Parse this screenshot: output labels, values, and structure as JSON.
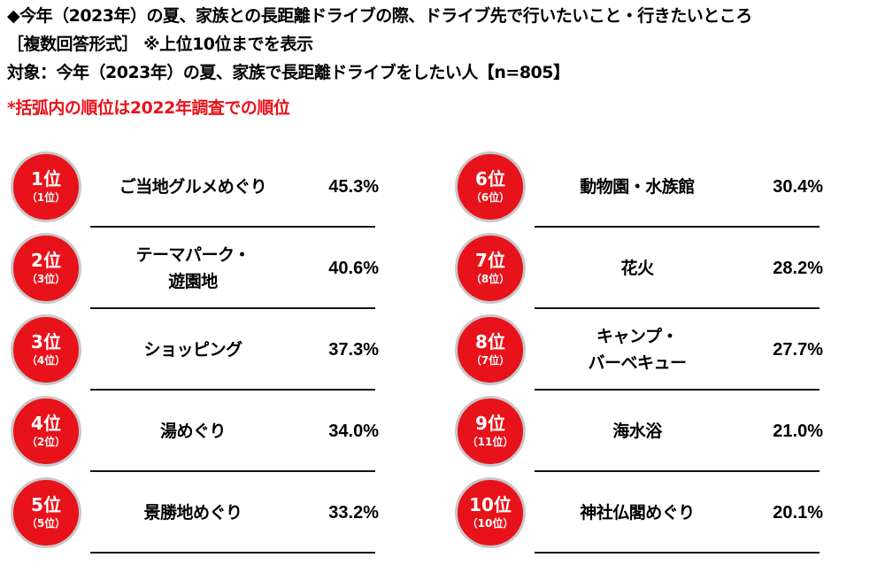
{
  "header": {
    "title": "◆今年（2023年）の夏、家族との長距離ドライブの際、ドライブ先で行いたいこと・行きたいところ",
    "format": "［複数回答形式］ ※上位10位までを表示",
    "target": "対象：今年（2023年）の夏、家族で長距離ドライブをしたい人【n=805】",
    "note": "*括弧内の順位は2022年調査での順位"
  },
  "colors": {
    "badge": "#e8121a",
    "badge_border": "#c8c8c8",
    "note": "#e8121a",
    "rule": "#111111"
  },
  "chart_data": {
    "type": "table",
    "title": "今年（2023年）の夏、家族との長距離ドライブの際、ドライブ先で行いたいこと・行きたいところ",
    "subtitle": "複数回答形式 / 上位10位 / n=805",
    "columns": [
      "rank",
      "prev_rank_2022",
      "item",
      "percent"
    ],
    "rows": [
      {
        "rank": "1位",
        "prev": "（1位）",
        "item": "ご当地グルメめぐり",
        "pct": "45.3%",
        "value": 45.3
      },
      {
        "rank": "2位",
        "prev": "（3位）",
        "item": "テーマパーク・遊園地",
        "pct": "40.6%",
        "value": 40.6
      },
      {
        "rank": "3位",
        "prev": "（4位）",
        "item": "ショッピング",
        "pct": "37.3%",
        "value": 37.3
      },
      {
        "rank": "4位",
        "prev": "（2位）",
        "item": "湯めぐり",
        "pct": "34.0%",
        "value": 34.0
      },
      {
        "rank": "5位",
        "prev": "（5位）",
        "item": "景勝地めぐり",
        "pct": "33.2%",
        "value": 33.2
      },
      {
        "rank": "6位",
        "prev": "（6位）",
        "item": "動物園・水族館",
        "pct": "30.4%",
        "value": 30.4
      },
      {
        "rank": "7位",
        "prev": "（8位）",
        "item": "花火",
        "pct": "28.2%",
        "value": 28.2
      },
      {
        "rank": "8位",
        "prev": "（7位）",
        "item": "キャンプ・バーベキュー",
        "pct": "27.7%",
        "value": 27.7
      },
      {
        "rank": "9位",
        "prev": "（11位）",
        "item": "海水浴",
        "pct": "21.0%",
        "value": 21.0
      },
      {
        "rank": "10位",
        "prev": "（10位）",
        "item": "神社仏閣めぐり",
        "pct": "20.1%",
        "value": 20.1
      }
    ]
  },
  "labels_display": {
    "r1": "ご当地グルメめぐり",
    "r2a": "テーマパーク・",
    "r2b": "遊園地",
    "r3": "ショッピング",
    "r4": "湯めぐり",
    "r5": "景勝地めぐり",
    "r6": "動物園・水族館",
    "r7": "花火",
    "r8a": "キャンプ・",
    "r8b": "バーベキュー",
    "r9": "海水浴",
    "r10": "神社仏閣めぐり"
  }
}
